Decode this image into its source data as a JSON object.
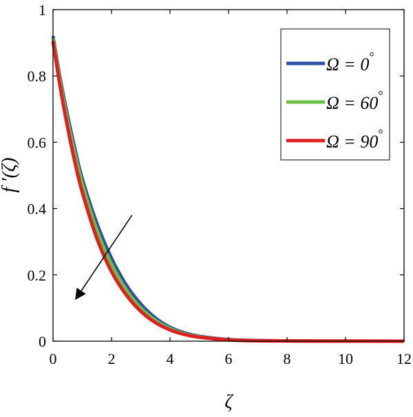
{
  "chart_data": {
    "type": "line",
    "xlabel": "ζ",
    "ylabel": "f ′(ζ)",
    "xlim": [
      0,
      12
    ],
    "ylim": [
      0,
      1
    ],
    "xticks": [
      0,
      2,
      4,
      6,
      8,
      10,
      12
    ],
    "yticks": [
      0,
      0.2,
      0.4,
      0.6,
      0.8,
      1
    ],
    "xtick_labels": [
      "0",
      "2",
      "4",
      "6",
      "8",
      "10",
      "12"
    ],
    "ytick_labels": [
      "0",
      "0.2",
      "0.4",
      "0.6",
      "0.8",
      "1"
    ],
    "grid": false,
    "legend_position": "top-right",
    "annotation": "arrow pointing toward decreasing f′(ζ) as Ω increases",
    "arrow": {
      "from": [
        2.7,
        0.38
      ],
      "to": [
        0.8,
        0.13
      ]
    },
    "x": [
      0,
      0.25,
      0.5,
      0.75,
      1,
      1.5,
      2,
      2.5,
      3,
      3.5,
      4,
      4.5,
      5,
      6,
      7,
      8,
      9,
      10,
      11,
      12
    ],
    "series": [
      {
        "name": "Ω = 0°",
        "label_prefix": "Ω = ",
        "label_value": "0",
        "label_unit": "°",
        "color": "#2f4fa2",
        "values": [
          0.92,
          0.79,
          0.68,
          0.58,
          0.49,
          0.355,
          0.25,
          0.17,
          0.112,
          0.07,
          0.042,
          0.025,
          0.015,
          0.005,
          0.002,
          0.001,
          0.0005,
          0.0003,
          0.0002,
          0.0001
        ]
      },
      {
        "name": "Ω = 60°",
        "label_prefix": "Ω = ",
        "label_value": "60",
        "label_unit": "°",
        "color": "#6bbf45",
        "values": [
          0.915,
          0.78,
          0.665,
          0.565,
          0.475,
          0.335,
          0.232,
          0.155,
          0.1,
          0.063,
          0.038,
          0.022,
          0.013,
          0.004,
          0.0015,
          0.0008,
          0.0004,
          0.0002,
          0.0001,
          0.0001
        ]
      },
      {
        "name": "Ω = 90°",
        "label_prefix": "Ω = ",
        "label_value": "90",
        "label_unit": "°",
        "color": "#e02020",
        "values": [
          0.905,
          0.765,
          0.645,
          0.54,
          0.45,
          0.31,
          0.21,
          0.14,
          0.09,
          0.056,
          0.034,
          0.02,
          0.012,
          0.004,
          0.0013,
          0.0006,
          0.0003,
          0.0002,
          0.0001,
          0.0001
        ]
      }
    ]
  }
}
